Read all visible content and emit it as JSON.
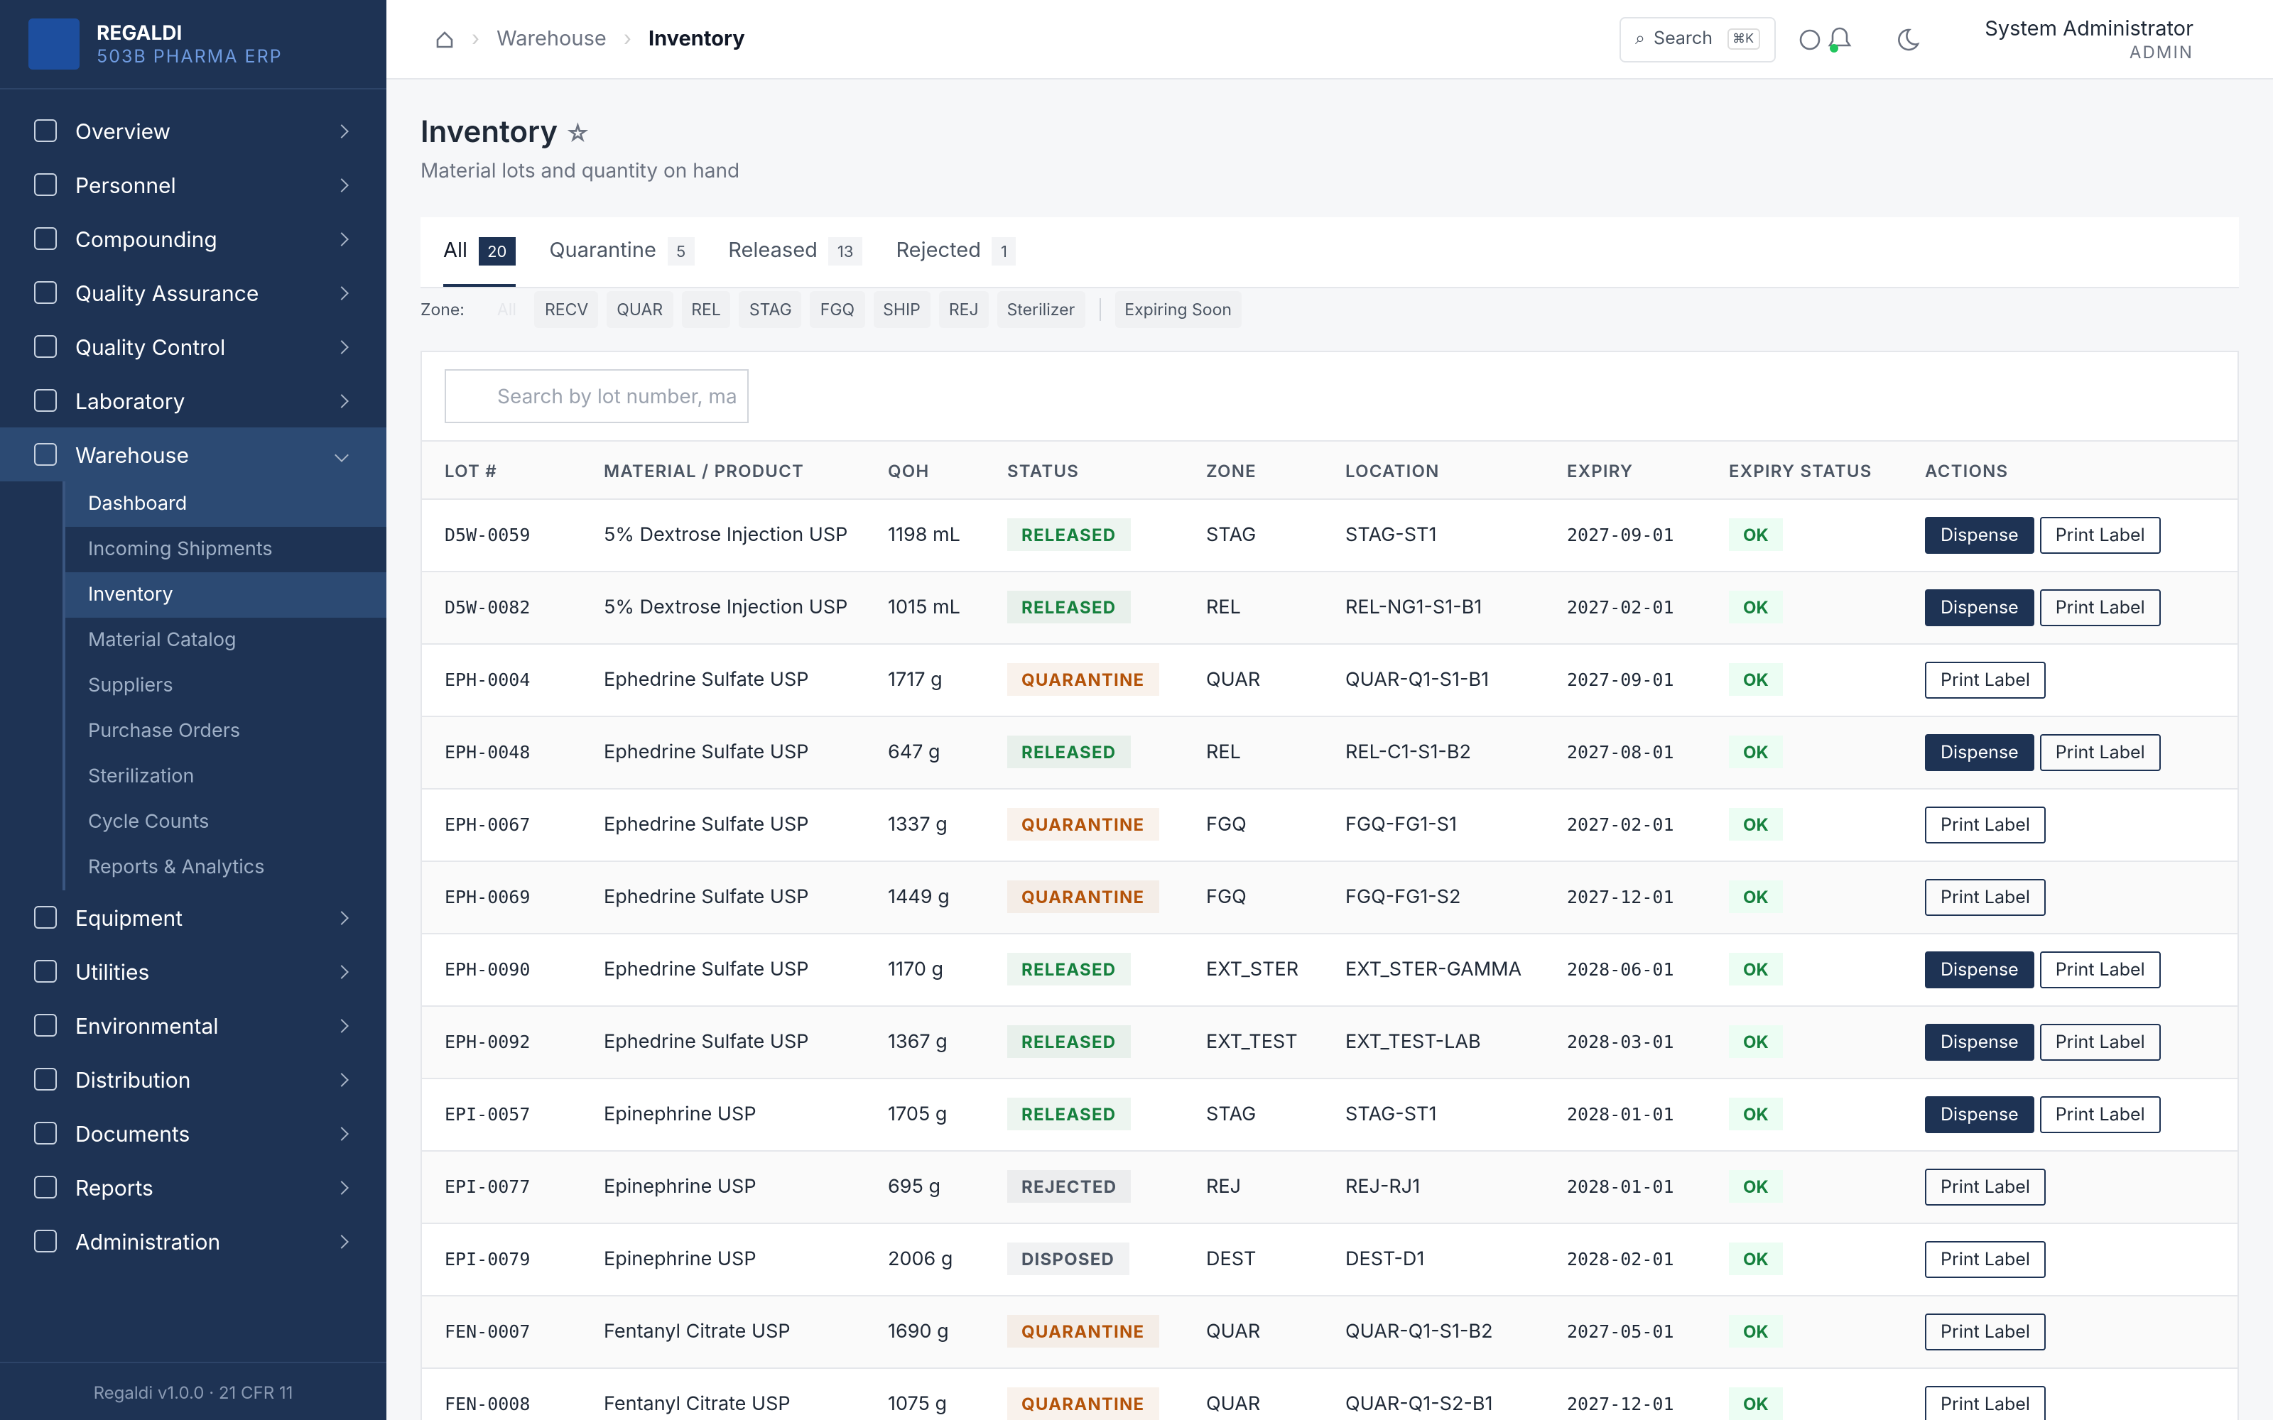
{
  "sidebar": {
    "brand": "REGALDI",
    "subtitle": "503B PHARMA ERP",
    "footer": "Regaldi v1.0.0 · 21 CFR 11",
    "nav": [
      {
        "label": "Overview"
      },
      {
        "label": "Personnel"
      },
      {
        "label": "Compounding"
      },
      {
        "label": "Quality Assurance"
      },
      {
        "label": "Quality Control"
      },
      {
        "label": "Laboratory"
      },
      {
        "label": "Warehouse",
        "expanded": true,
        "children": [
          {
            "label": "Dashboard",
            "active": true
          },
          {
            "label": "Incoming Shipments"
          },
          {
            "label": "Inventory",
            "active": true
          },
          {
            "label": "Material Catalog"
          },
          {
            "label": "Suppliers"
          },
          {
            "label": "Purchase Orders"
          },
          {
            "label": "Sterilization"
          },
          {
            "label": "Cycle Counts"
          },
          {
            "label": "Reports & Analytics"
          }
        ]
      },
      {
        "label": "Equipment"
      },
      {
        "label": "Utilities"
      },
      {
        "label": "Environmental"
      },
      {
        "label": "Distribution"
      },
      {
        "label": "Documents"
      },
      {
        "label": "Reports"
      },
      {
        "label": "Administration"
      }
    ]
  },
  "header": {
    "breadcrumb": [
      "Warehouse",
      "Inventory"
    ],
    "search": "Search",
    "shortcut": "⌘K",
    "user": "System Administrator",
    "role": "ADMIN"
  },
  "page": {
    "title": "Inventory",
    "subtitle": "Material lots and quantity on hand"
  },
  "tabs": [
    {
      "label": "All",
      "count": 20,
      "active": true
    },
    {
      "label": "Quarantine",
      "count": 5
    },
    {
      "label": "Released",
      "count": 13
    },
    {
      "label": "Rejected",
      "count": 1
    }
  ],
  "zone_filter": {
    "label": "Zone:",
    "options": [
      "All",
      "RECV",
      "QUAR",
      "REL",
      "STAG",
      "FGQ",
      "SHIP",
      "REJ",
      "Sterilizer"
    ],
    "extra": "Expiring Soon"
  },
  "table": {
    "search_placeholder": "Search by lot number, ma",
    "columns": [
      "LOT #",
      "MATERIAL / PRODUCT",
      "QOH",
      "STATUS",
      "ZONE",
      "LOCATION",
      "EXPIRY",
      "EXPIRY STATUS",
      "ACTIONS"
    ],
    "rows": [
      {
        "lot": "D5W-0059",
        "material": "5% Dextrose Injection USP",
        "qoh": "1198 mL",
        "status": "RELEASED",
        "status_color": "#15803d",
        "zone": "STAG",
        "location": "STAG-ST1",
        "expiry": "2027-09-01",
        "expiry_status": "OK",
        "actions": [
          "Dispense",
          "Print Label"
        ]
      },
      {
        "lot": "D5W-0082",
        "material": "5% Dextrose Injection USP",
        "qoh": "1015 mL",
        "status": "RELEASED",
        "status_color": "#15803d",
        "zone": "REL",
        "location": "REL-NG1-S1-B1",
        "expiry": "2027-02-01",
        "expiry_status": "OK",
        "actions": [
          "Dispense",
          "Print Label"
        ]
      },
      {
        "lot": "EPH-0004",
        "material": "Ephedrine Sulfate USP",
        "qoh": "1717 g",
        "status": "QUARANTINE",
        "status_color": "#b45309",
        "zone": "QUAR",
        "location": "QUAR-Q1-S1-B1",
        "expiry": "2027-09-01",
        "expiry_status": "OK",
        "actions": [
          "Print Label"
        ]
      },
      {
        "lot": "EPH-0048",
        "material": "Ephedrine Sulfate USP",
        "qoh": "647 g",
        "status": "RELEASED",
        "status_color": "#15803d",
        "zone": "REL",
        "location": "REL-C1-S1-B2",
        "expiry": "2027-08-01",
        "expiry_status": "OK",
        "actions": [
          "Dispense",
          "Print Label"
        ]
      },
      {
        "lot": "EPH-0067",
        "material": "Ephedrine Sulfate USP",
        "qoh": "1337 g",
        "status": "QUARANTINE",
        "status_color": "#b45309",
        "zone": "FGQ",
        "location": "FGQ-FG1-S1",
        "expiry": "2027-02-01",
        "expiry_status": "OK",
        "actions": [
          "Print Label"
        ]
      },
      {
        "lot": "EPH-0069",
        "material": "Ephedrine Sulfate USP",
        "qoh": "1449 g",
        "status": "QUARANTINE",
        "status_color": "#b45309",
        "zone": "FGQ",
        "location": "FGQ-FG1-S2",
        "expiry": "2027-12-01",
        "expiry_status": "OK",
        "actions": [
          "Print Label"
        ]
      },
      {
        "lot": "EPH-0090",
        "material": "Ephedrine Sulfate USP",
        "qoh": "1170 g",
        "status": "RELEASED",
        "status_color": "#15803d",
        "zone": "EXT_STER",
        "location": "EXT_STER-GAMMA",
        "expiry": "2028-06-01",
        "expiry_status": "OK",
        "actions": [
          "Dispense",
          "Print Label"
        ]
      },
      {
        "lot": "EPH-0092",
        "material": "Ephedrine Sulfate USP",
        "qoh": "1367 g",
        "status": "RELEASED",
        "status_color": "#15803d",
        "zone": "EXT_TEST",
        "location": "EXT_TEST-LAB",
        "expiry": "2028-03-01",
        "expiry_status": "OK",
        "actions": [
          "Dispense",
          "Print Label"
        ]
      },
      {
        "lot": "EPI-0057",
        "material": "Epinephrine USP",
        "qoh": "1705 g",
        "status": "RELEASED",
        "status_color": "#15803d",
        "zone": "STAG",
        "location": "STAG-ST1",
        "expiry": "2028-01-01",
        "expiry_status": "OK",
        "actions": [
          "Dispense",
          "Print Label"
        ]
      },
      {
        "lot": "EPI-0077",
        "material": "Epinephrine USP",
        "qoh": "695 g",
        "status": "REJECTED",
        "status_color": "#4b5563",
        "zone": "REJ",
        "location": "REJ-RJ1",
        "expiry": "2028-01-01",
        "expiry_status": "OK",
        "actions": [
          "Print Label"
        ]
      },
      {
        "lot": "EPI-0079",
        "material": "Epinephrine USP",
        "qoh": "2006 g",
        "status": "DISPOSED",
        "status_color": "#4b5563",
        "zone": "DEST",
        "location": "DEST-D1",
        "expiry": "2028-02-01",
        "expiry_status": "OK",
        "actions": [
          "Print Label"
        ]
      },
      {
        "lot": "FEN-0007",
        "material": "Fentanyl Citrate USP",
        "qoh": "1690 g",
        "status": "QUARANTINE",
        "status_color": "#b45309",
        "zone": "QUAR",
        "location": "QUAR-Q1-S1-B2",
        "expiry": "2027-05-01",
        "expiry_status": "OK",
        "actions": [
          "Print Label"
        ]
      },
      {
        "lot": "FEN-0008",
        "material": "Fentanyl Citrate USP",
        "qoh": "1075 g",
        "status": "QUARANTINE",
        "status_color": "#b45309",
        "zone": "QUAR",
        "location": "QUAR-Q1-S2-B1",
        "expiry": "2027-12-01",
        "expiry_status": "OK",
        "actions": [
          "Print Label"
        ]
      }
    ]
  }
}
